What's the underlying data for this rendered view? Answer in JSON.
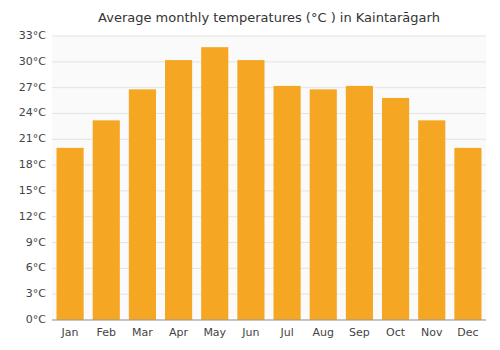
{
  "chart_data": {
    "type": "bar",
    "title": "Average monthly temperatures (°C ) in Kaintarāgarh",
    "categories": [
      "Jan",
      "Feb",
      "Mar",
      "Apr",
      "May",
      "Jun",
      "Jul",
      "Aug",
      "Sep",
      "Oct",
      "Nov",
      "Dec"
    ],
    "values": [
      20.0,
      23.2,
      26.8,
      30.2,
      31.7,
      30.2,
      27.2,
      26.8,
      27.2,
      25.8,
      23.2,
      20.0
    ],
    "color": "#F5A623",
    "ylim": [
      0,
      33
    ],
    "yticks": [
      {
        "value": 0,
        "label": "0°C"
      },
      {
        "value": 3,
        "label": "3°C"
      },
      {
        "value": 6,
        "label": "6°C"
      },
      {
        "value": 9,
        "label": "9°C"
      },
      {
        "value": 12,
        "label": "12°C"
      },
      {
        "value": 15,
        "label": "15°C"
      },
      {
        "value": 18,
        "label": "18°C"
      },
      {
        "value": 21,
        "label": "21°C"
      },
      {
        "value": 24,
        "label": "24°C"
      },
      {
        "value": 27,
        "label": "27°C"
      },
      {
        "value": 30,
        "label": "30°C"
      },
      {
        "value": 33,
        "label": "33°C"
      }
    ],
    "grid": true
  }
}
